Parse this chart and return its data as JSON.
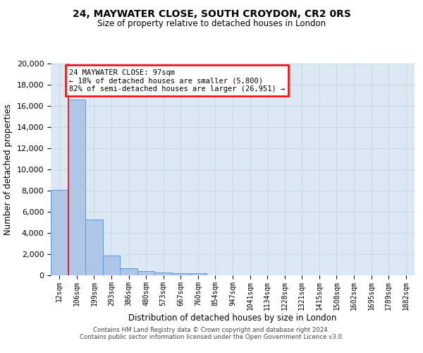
{
  "title": "24, MAYWATER CLOSE, SOUTH CROYDON, CR2 0RS",
  "subtitle": "Size of property relative to detached houses in London",
  "xlabel": "Distribution of detached houses by size in London",
  "ylabel": "Number of detached properties",
  "footer_line1": "Contains HM Land Registry data © Crown copyright and database right 2024.",
  "footer_line2": "Contains public sector information licensed under the Open Government Licence v3.0.",
  "annotation_line1": "24 MAYWATER CLOSE: 97sqm",
  "annotation_line2": "← 18% of detached houses are smaller (5,800)",
  "annotation_line3": "82% of semi-detached houses are larger (26,951) →",
  "bar_labels": [
    "12sqm",
    "106sqm",
    "199sqm",
    "293sqm",
    "386sqm",
    "480sqm",
    "573sqm",
    "667sqm",
    "760sqm",
    "854sqm",
    "947sqm",
    "1041sqm",
    "1134sqm",
    "1228sqm",
    "1321sqm",
    "1415sqm",
    "1508sqm",
    "1602sqm",
    "1695sqm",
    "1789sqm",
    "1882sqm"
  ],
  "bar_values": [
    8100,
    16600,
    5300,
    1850,
    700,
    380,
    280,
    200,
    170,
    0,
    0,
    0,
    0,
    0,
    0,
    0,
    0,
    0,
    0,
    0,
    0
  ],
  "bar_color": "#aec6e8",
  "bar_edge_color": "#5b9bd5",
  "grid_color": "#c8d8e8",
  "background_color": "#dce9f5",
  "red_line_x": 0.5,
  "ylim": [
    0,
    20000
  ],
  "yticks": [
    0,
    2000,
    4000,
    6000,
    8000,
    10000,
    12000,
    14000,
    16000,
    18000,
    20000
  ]
}
